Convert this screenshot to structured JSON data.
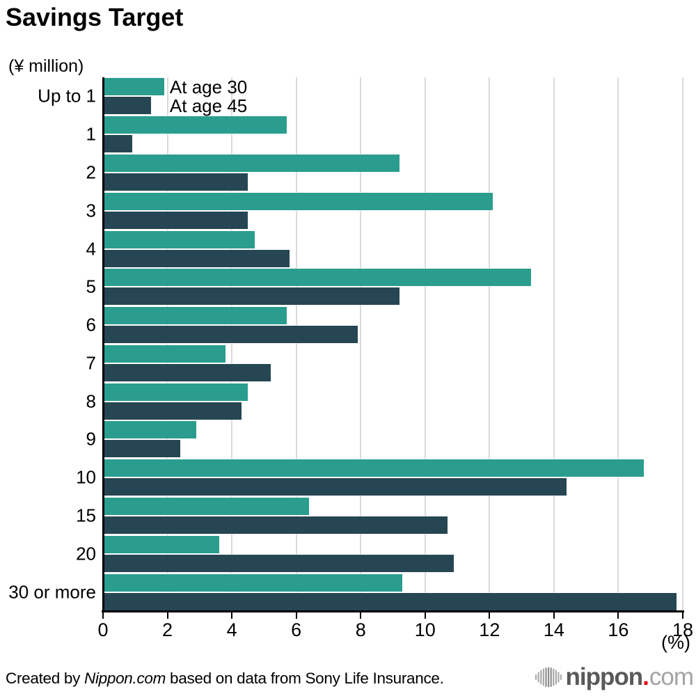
{
  "colors": {
    "teal": "#2a9d8f",
    "navy": "#264653",
    "gridline": "#d9d9d9",
    "axis": "#000000",
    "logo_dark_gray": "#595959",
    "logo_light_gray": "#a3a3a3",
    "logo_red": "#e60012"
  },
  "chart_data": {
    "type": "bar",
    "orientation": "horizontal",
    "title": "Savings Target",
    "unit_label": "(¥ million)",
    "axis_label": "(%)",
    "categories": [
      "Up to 1",
      "1",
      "2",
      "3",
      "4",
      "5",
      "6",
      "7",
      "8",
      "9",
      "10",
      "15",
      "20",
      "30 or more"
    ],
    "series": [
      {
        "name": "At age 30",
        "color": "#2a9d8f",
        "values": [
          1.9,
          5.7,
          9.2,
          12.1,
          4.7,
          13.3,
          5.7,
          3.8,
          4.5,
          2.9,
          16.8,
          6.4,
          3.6,
          9.3
        ]
      },
      {
        "name": "At age 45",
        "color": "#264653",
        "values": [
          1.5,
          0.9,
          4.5,
          4.5,
          5.8,
          9.2,
          7.9,
          5.2,
          4.3,
          2.4,
          14.4,
          10.7,
          10.9,
          17.8
        ]
      }
    ],
    "xlim": [
      0,
      18
    ],
    "xticks": [
      0,
      2,
      4,
      6,
      8,
      10,
      12,
      14,
      16,
      18
    ],
    "grid": true,
    "legend_position": "inline-next-to-first-bars"
  },
  "footer": {
    "credit_prefix": "Created by ",
    "credit_source": "Nippon.com",
    "credit_suffix": " based on data from Sony Life Insurance.",
    "logo_bold": "nippon",
    "logo_dot": ".",
    "logo_light": "com"
  }
}
